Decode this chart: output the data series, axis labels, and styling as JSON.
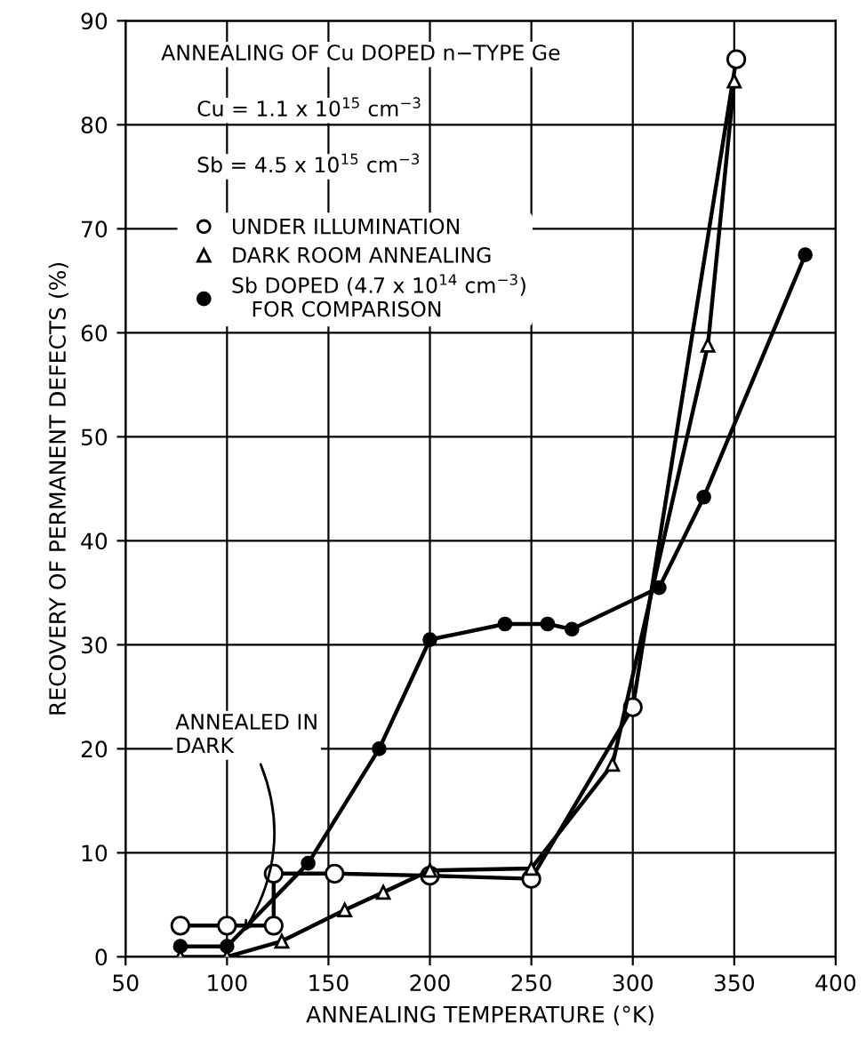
{
  "chart_data": {
    "type": "line",
    "xlabel": "ANNEALING TEMPERATURE (°K)",
    "ylabel": "RECOVERY OF PERMANENT DEFECTS (%)",
    "xlim": [
      50,
      400
    ],
    "xticks": [
      50,
      100,
      150,
      200,
      250,
      300,
      350,
      400
    ],
    "ylim": [
      0,
      90
    ],
    "yticks": [
      0,
      10,
      20,
      30,
      40,
      50,
      60,
      70,
      80,
      90
    ],
    "grid": true,
    "legend": "top left",
    "line_style": "solid",
    "annotations": [
      "ANNEALING OF Cu DOPED n−TYPE Ge",
      "Cu = 1.1 x 10$^{15}$ cm$^{−3}$",
      "Sb = 4.5 x 10$^{15}$ cm$^{−3}$",
      {
        "text": "ANNEALED IN\nDARK",
        "x": 107,
        "y": 2
      }
    ],
    "series": [
      {
        "name": "UNDER ILLUMINATION",
        "color": "#000000",
        "marker": "circle",
        "x": [
          77,
          100,
          123,
          123,
          153,
          200,
          250,
          300,
          351
        ],
        "values": [
          3,
          3,
          3,
          8,
          8,
          7.8,
          7.5,
          24,
          86.3
        ]
      },
      {
        "name": "DARK ROOM ANNEALING",
        "color": "#000000",
        "marker": "triangle",
        "x": [
          77,
          100,
          127,
          158,
          177,
          200,
          250,
          290,
          337,
          350
        ],
        "values": [
          0,
          0,
          1.5,
          4.5,
          6.2,
          8.3,
          8.5,
          18.5,
          58.8,
          84.2
        ]
      },
      {
        "name": "Sb DOPED (4.7 x 10$^{14}$ cm$^{−3}$)\n   FOR COMPARISON",
        "color": "#000000",
        "marker": "circle",
        "x": [
          77,
          100,
          140,
          175,
          200,
          237,
          258,
          270,
          313,
          335,
          385
        ],
        "values": [
          1,
          1,
          9,
          20,
          30.5,
          32,
          32,
          31.5,
          35.5,
          44.2,
          67.5
        ]
      }
    ]
  }
}
